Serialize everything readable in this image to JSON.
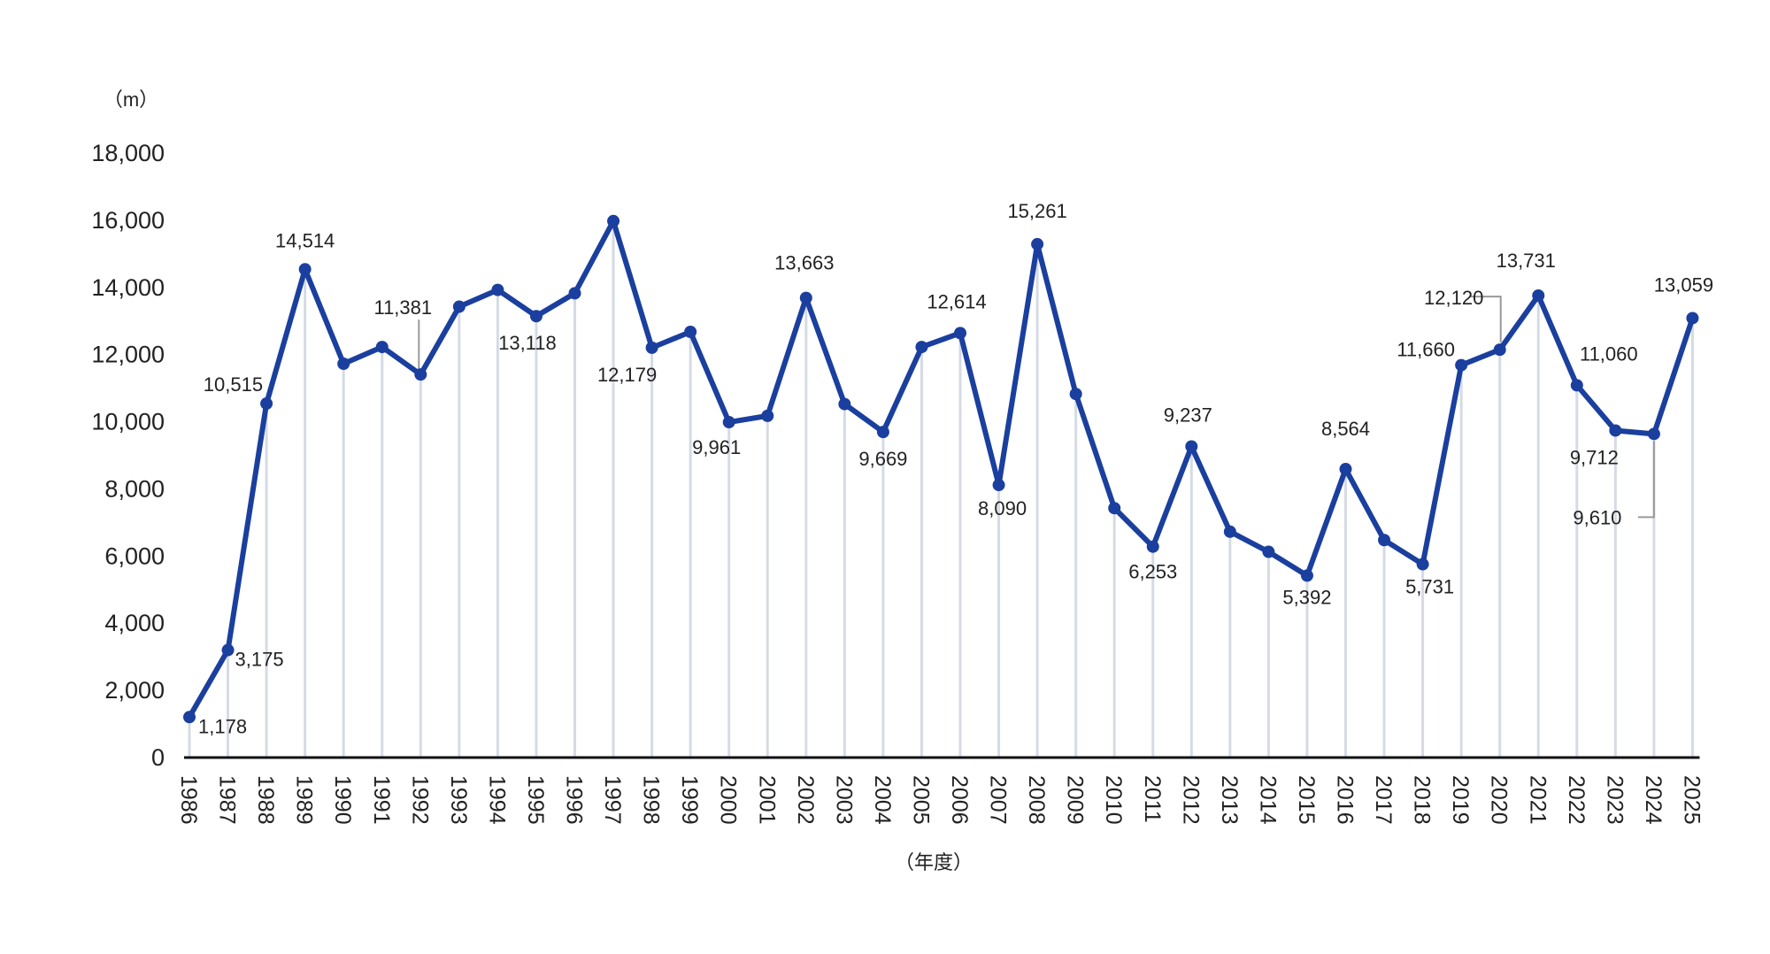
{
  "chart_data": {
    "type": "line",
    "y_unit": "（m）",
    "x_unit": "（年度）",
    "ylim": [
      0,
      18000
    ],
    "yticks": [
      "0",
      "2,000",
      "4,000",
      "6,000",
      "8,000",
      "10,000",
      "12,000",
      "14,000",
      "16,000",
      "18,000"
    ],
    "grid": "vertical lines at each year",
    "colors": {
      "line": "#1a3f9e",
      "grid": "#d5dbe5",
      "axis": "#111111"
    },
    "x": [
      "1986",
      "1987",
      "1988",
      "1989",
      "1990",
      "1991",
      "1992",
      "1993",
      "1994",
      "1995",
      "1996",
      "1997",
      "1998",
      "1999",
      "2000",
      "2001",
      "2002",
      "2003",
      "2004",
      "2005",
      "2006",
      "2007",
      "2008",
      "2009",
      "2010",
      "2011",
      "2012",
      "2013",
      "2014",
      "2015",
      "2016",
      "2017",
      "2018",
      "2019",
      "2020",
      "2021",
      "2022",
      "2023",
      "2024",
      "2025"
    ],
    "series": [
      {
        "values": [
          1178,
          3175,
          10515,
          14514,
          11700,
          12200,
          11381,
          13400,
          13900,
          13118,
          13800,
          15950,
          12179,
          12650,
          9961,
          10150,
          13663,
          10500,
          9669,
          12200,
          12614,
          8090,
          15261,
          10800,
          7400,
          6253,
          9237,
          6700,
          6100,
          5392,
          8564,
          6450,
          5731,
          11660,
          12120,
          13731,
          11060,
          9712,
          9610,
          13059
        ]
      }
    ],
    "data_labels": [
      {
        "year": "1986",
        "text": "1,178"
      },
      {
        "year": "1987",
        "text": "3,175"
      },
      {
        "year": "1988",
        "text": "10,515"
      },
      {
        "year": "1989",
        "text": "14,514"
      },
      {
        "year": "1992",
        "text": "11,381"
      },
      {
        "year": "1995",
        "text": "13,118"
      },
      {
        "year": "1998",
        "text": "12,179"
      },
      {
        "year": "2000",
        "text": "9,961"
      },
      {
        "year": "2002",
        "text": "13,663"
      },
      {
        "year": "2004",
        "text": "9,669"
      },
      {
        "year": "2006",
        "text": "12,614"
      },
      {
        "year": "2007",
        "text": "8,090"
      },
      {
        "year": "2008",
        "text": "15,261"
      },
      {
        "year": "2011",
        "text": "6,253"
      },
      {
        "year": "2012",
        "text": "9,237"
      },
      {
        "year": "2015",
        "text": "5,392"
      },
      {
        "year": "2016",
        "text": "8,564"
      },
      {
        "year": "2018",
        "text": "5,731"
      },
      {
        "year": "2019",
        "text": "11,660"
      },
      {
        "year": "2020",
        "text": "12,120"
      },
      {
        "year": "2021",
        "text": "13,731"
      },
      {
        "year": "2022",
        "text": "11,060"
      },
      {
        "year": "2023",
        "text": "9,712"
      },
      {
        "year": "2024",
        "text": "9,610"
      },
      {
        "year": "2025",
        "text": "13,059"
      }
    ]
  }
}
